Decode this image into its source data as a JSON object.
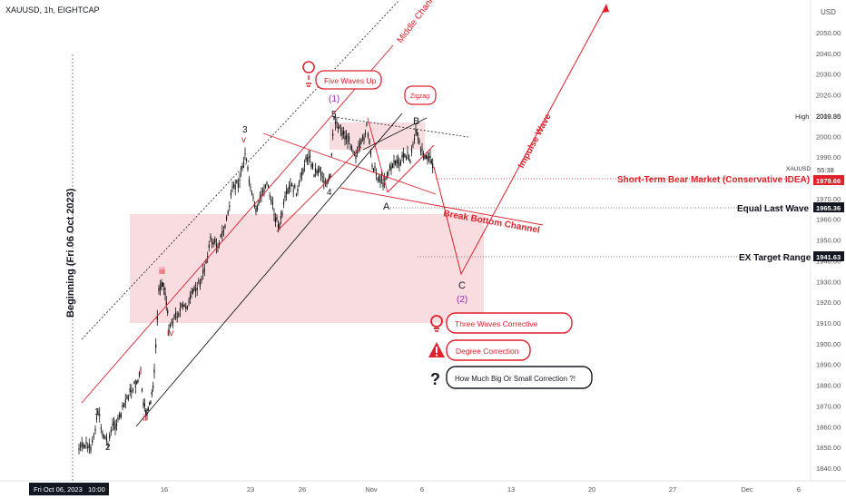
{
  "header": {
    "symbol_title": "XAUUSD, 1h, EIGHTCAP"
  },
  "price_axis": {
    "currency": "USD",
    "ticks": [
      2050,
      2040,
      2030,
      2020,
      2010,
      2000,
      1990,
      1980,
      1970,
      1960,
      1950,
      1940,
      1930,
      1920,
      1910,
      1900,
      1890,
      1880,
      1870,
      1860,
      1850,
      1840
    ],
    "markers": {
      "high": {
        "label": "High",
        "value": "2009.35"
      },
      "symbol": {
        "label": "XAUUSD",
        "value": "1979.66",
        "countdown": "55:38"
      },
      "equal_last_wave": {
        "value": "1965.36"
      },
      "ex_target": {
        "value": "1941.63"
      }
    }
  },
  "time_axis": {
    "date_box": "Fri Oct 06, 2023",
    "time_box": "10:00",
    "ticks": [
      "16",
      "23",
      "26",
      "Nov",
      "6",
      "13",
      "20",
      "27",
      "Dec",
      "6"
    ]
  },
  "annotations": {
    "vertical_label": "Beginning (Fri 06 Oct 2023)",
    "middle_channel": "Middle Channel",
    "five_waves_up": "Five Waves Up",
    "zigzag": "Zigzag",
    "impulse_wave": "Impulse Wave",
    "break_bottom_channel": "Break Bottom Channel",
    "short_term_bear": "Short-Term Bear Market (Conservative IDEA)",
    "equal_last_wave": "Equal Last Wave",
    "ex_target_range": "EX Target Range",
    "three_waves_corrective": "Three Waves Corrective",
    "degree_correction": "Degree Correction",
    "how_much": "How Much Big Or Small Correction ?!",
    "waves": {
      "w1": "1",
      "w2": "2",
      "w3": "3",
      "w4": "4",
      "w5": "5",
      "wi": "i",
      "wii": "ii",
      "wiii": "iii",
      "wiv": "iv",
      "wv": "v",
      "wA": "A",
      "wB": "B",
      "wC": "C",
      "deg1": "(1)",
      "deg2": "(2)"
    }
  },
  "colors": {
    "red": "#e0202a",
    "channel_black": "#1a1a1a",
    "purple": "#9c27b0",
    "zone": "#f7d6da",
    "axis_text": "#555555",
    "candle": "#111111"
  },
  "chart_data": {
    "type": "candlestick-line",
    "symbol": "XAUUSD",
    "timeframe": "1h",
    "ylim": [
      1835,
      2060
    ],
    "x": [
      "Oct 06",
      "Oct 09",
      "Oct 10",
      "Oct 11",
      "Oct 12",
      "Oct 13",
      "Oct 16",
      "Oct 17",
      "Oct 18",
      "Oct 19",
      "Oct 20",
      "Oct 23",
      "Oct 24",
      "Oct 25",
      "Oct 26",
      "Oct 27",
      "Oct 30",
      "Oct 31",
      "Nov 01",
      "Nov 02",
      "Nov 03",
      "Nov 06",
      "Nov 07"
    ],
    "close": [
      1843,
      1868,
      1862,
      1878,
      1873,
      1925,
      1918,
      1932,
      1955,
      1974,
      1983,
      1973,
      1978,
      1982,
      1990,
      2002,
      1997,
      1984,
      1975,
      1982,
      1993,
      2005,
      1979.66
    ],
    "levels": [
      {
        "label": "High",
        "value": 2009.35
      },
      {
        "label": "Short-Term Bear Market (Conservative IDEA)",
        "value": 1979.66
      },
      {
        "label": "Equal Last Wave",
        "value": 1965.36
      },
      {
        "label": "EX Target Range",
        "value": 1941.63
      }
    ],
    "wave_counts": [
      "1",
      "2",
      "i",
      "ii",
      "iii",
      "iv",
      "v",
      "3",
      "4",
      "5",
      "A",
      "B",
      "C",
      "(1)",
      "(2)"
    ]
  }
}
